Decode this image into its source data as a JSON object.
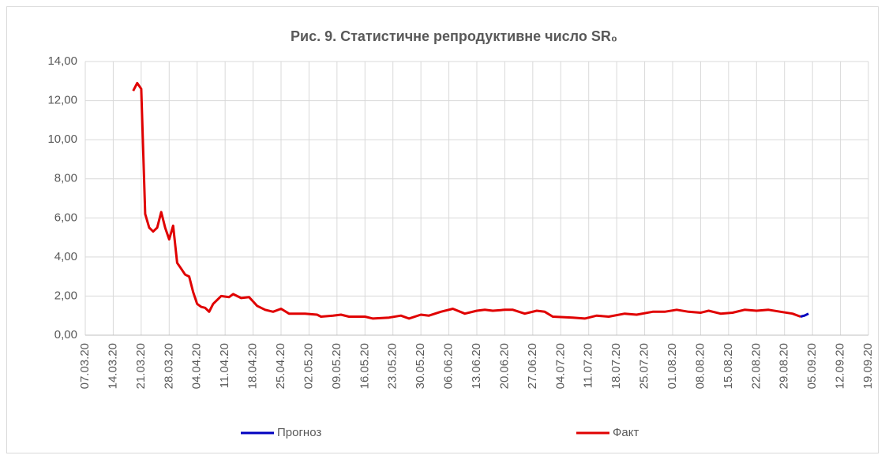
{
  "chart_data": {
    "type": "line",
    "title": "Рис. 9. Статистичне репродуктивне число SR₀",
    "ylim": [
      0,
      14
    ],
    "yticks": [
      {
        "value": 0,
        "label": "0,00"
      },
      {
        "value": 2,
        "label": "2,00"
      },
      {
        "value": 4,
        "label": "4,00"
      },
      {
        "value": 6,
        "label": "6,00"
      },
      {
        "value": 8,
        "label": "8,00"
      },
      {
        "value": 10,
        "label": "10,00"
      },
      {
        "value": 12,
        "label": "12,00"
      },
      {
        "value": 14,
        "label": "14,00"
      }
    ],
    "xlim": [
      "2020-03-07",
      "2020-09-19"
    ],
    "xticks": [
      {
        "value": "2020-03-07",
        "label": "07.03.20"
      },
      {
        "value": "2020-03-14",
        "label": "14.03.20"
      },
      {
        "value": "2020-03-21",
        "label": "21.03.20"
      },
      {
        "value": "2020-03-28",
        "label": "28.03.20"
      },
      {
        "value": "2020-04-04",
        "label": "04.04.20"
      },
      {
        "value": "2020-04-11",
        "label": "11.04.20"
      },
      {
        "value": "2020-04-18",
        "label": "18.04.20"
      },
      {
        "value": "2020-04-25",
        "label": "25.04.20"
      },
      {
        "value": "2020-05-02",
        "label": "02.05.20"
      },
      {
        "value": "2020-05-09",
        "label": "09.05.20"
      },
      {
        "value": "2020-05-16",
        "label": "16.05.20"
      },
      {
        "value": "2020-05-23",
        "label": "23.05.20"
      },
      {
        "value": "2020-05-30",
        "label": "30.05.20"
      },
      {
        "value": "2020-06-06",
        "label": "06.06.20"
      },
      {
        "value": "2020-06-13",
        "label": "13.06.20"
      },
      {
        "value": "2020-06-20",
        "label": "20.06.20"
      },
      {
        "value": "2020-06-27",
        "label": "27.06.20"
      },
      {
        "value": "2020-07-04",
        "label": "04.07.20"
      },
      {
        "value": "2020-07-11",
        "label": "11.07.20"
      },
      {
        "value": "2020-07-18",
        "label": "18.07.20"
      },
      {
        "value": "2020-07-25",
        "label": "25.07.20"
      },
      {
        "value": "2020-08-01",
        "label": "01.08.20"
      },
      {
        "value": "2020-08-08",
        "label": "08.08.20"
      },
      {
        "value": "2020-08-15",
        "label": "15.08.20"
      },
      {
        "value": "2020-08-22",
        "label": "22.08.20"
      },
      {
        "value": "2020-08-29",
        "label": "29.08.20"
      },
      {
        "value": "2020-09-05",
        "label": "05.09.20"
      },
      {
        "value": "2020-09-12",
        "label": "12.09.20"
      },
      {
        "value": "2020-09-19",
        "label": "19.09.20"
      }
    ],
    "grid": true,
    "legend": "bottom",
    "series": [
      {
        "name": "Прогноз",
        "color": "#0000c0",
        "x": [
          "2020-09-02",
          "2020-09-03",
          "2020-09-04"
        ],
        "values": [
          0.95,
          1.0,
          1.1
        ]
      },
      {
        "name": "Факт",
        "color": "#e00000",
        "x": [
          "2020-03-19",
          "2020-03-20",
          "2020-03-21",
          "2020-03-22",
          "2020-03-23",
          "2020-03-24",
          "2020-03-25",
          "2020-03-26",
          "2020-03-27",
          "2020-03-28",
          "2020-03-29",
          "2020-03-30",
          "2020-03-31",
          "2020-04-01",
          "2020-04-02",
          "2020-04-03",
          "2020-04-04",
          "2020-04-05",
          "2020-04-06",
          "2020-04-07",
          "2020-04-08",
          "2020-04-10",
          "2020-04-12",
          "2020-04-13",
          "2020-04-15",
          "2020-04-17",
          "2020-04-19",
          "2020-04-21",
          "2020-04-23",
          "2020-04-25",
          "2020-04-27",
          "2020-05-01",
          "2020-05-04",
          "2020-05-05",
          "2020-05-08",
          "2020-05-10",
          "2020-05-12",
          "2020-05-16",
          "2020-05-18",
          "2020-05-22",
          "2020-05-25",
          "2020-05-27",
          "2020-05-30",
          "2020-06-01",
          "2020-06-04",
          "2020-06-07",
          "2020-06-10",
          "2020-06-13",
          "2020-06-15",
          "2020-06-17",
          "2020-06-20",
          "2020-06-22",
          "2020-06-25",
          "2020-06-28",
          "2020-06-30",
          "2020-07-02",
          "2020-07-07",
          "2020-07-10",
          "2020-07-13",
          "2020-07-16",
          "2020-07-20",
          "2020-07-23",
          "2020-07-27",
          "2020-07-30",
          "2020-08-02",
          "2020-08-05",
          "2020-08-08",
          "2020-08-10",
          "2020-08-13",
          "2020-08-16",
          "2020-08-19",
          "2020-08-22",
          "2020-08-25",
          "2020-08-28",
          "2020-08-31",
          "2020-09-02"
        ],
        "values": [
          12.5,
          12.9,
          12.6,
          6.2,
          5.5,
          5.3,
          5.5,
          6.3,
          5.5,
          4.9,
          5.6,
          3.7,
          3.4,
          3.1,
          3.0,
          2.2,
          1.6,
          1.45,
          1.4,
          1.2,
          1.6,
          2.0,
          1.95,
          2.1,
          1.9,
          1.95,
          1.5,
          1.3,
          1.2,
          1.35,
          1.1,
          1.1,
          1.05,
          0.95,
          1.0,
          1.05,
          0.95,
          0.95,
          0.85,
          0.9,
          1.0,
          0.85,
          1.05,
          1.0,
          1.2,
          1.35,
          1.1,
          1.25,
          1.3,
          1.25,
          1.3,
          1.3,
          1.1,
          1.25,
          1.2,
          0.95,
          0.9,
          0.85,
          1.0,
          0.95,
          1.1,
          1.05,
          1.2,
          1.2,
          1.3,
          1.2,
          1.15,
          1.25,
          1.1,
          1.15,
          1.3,
          1.25,
          1.3,
          1.2,
          1.1,
          0.95
        ]
      }
    ]
  }
}
